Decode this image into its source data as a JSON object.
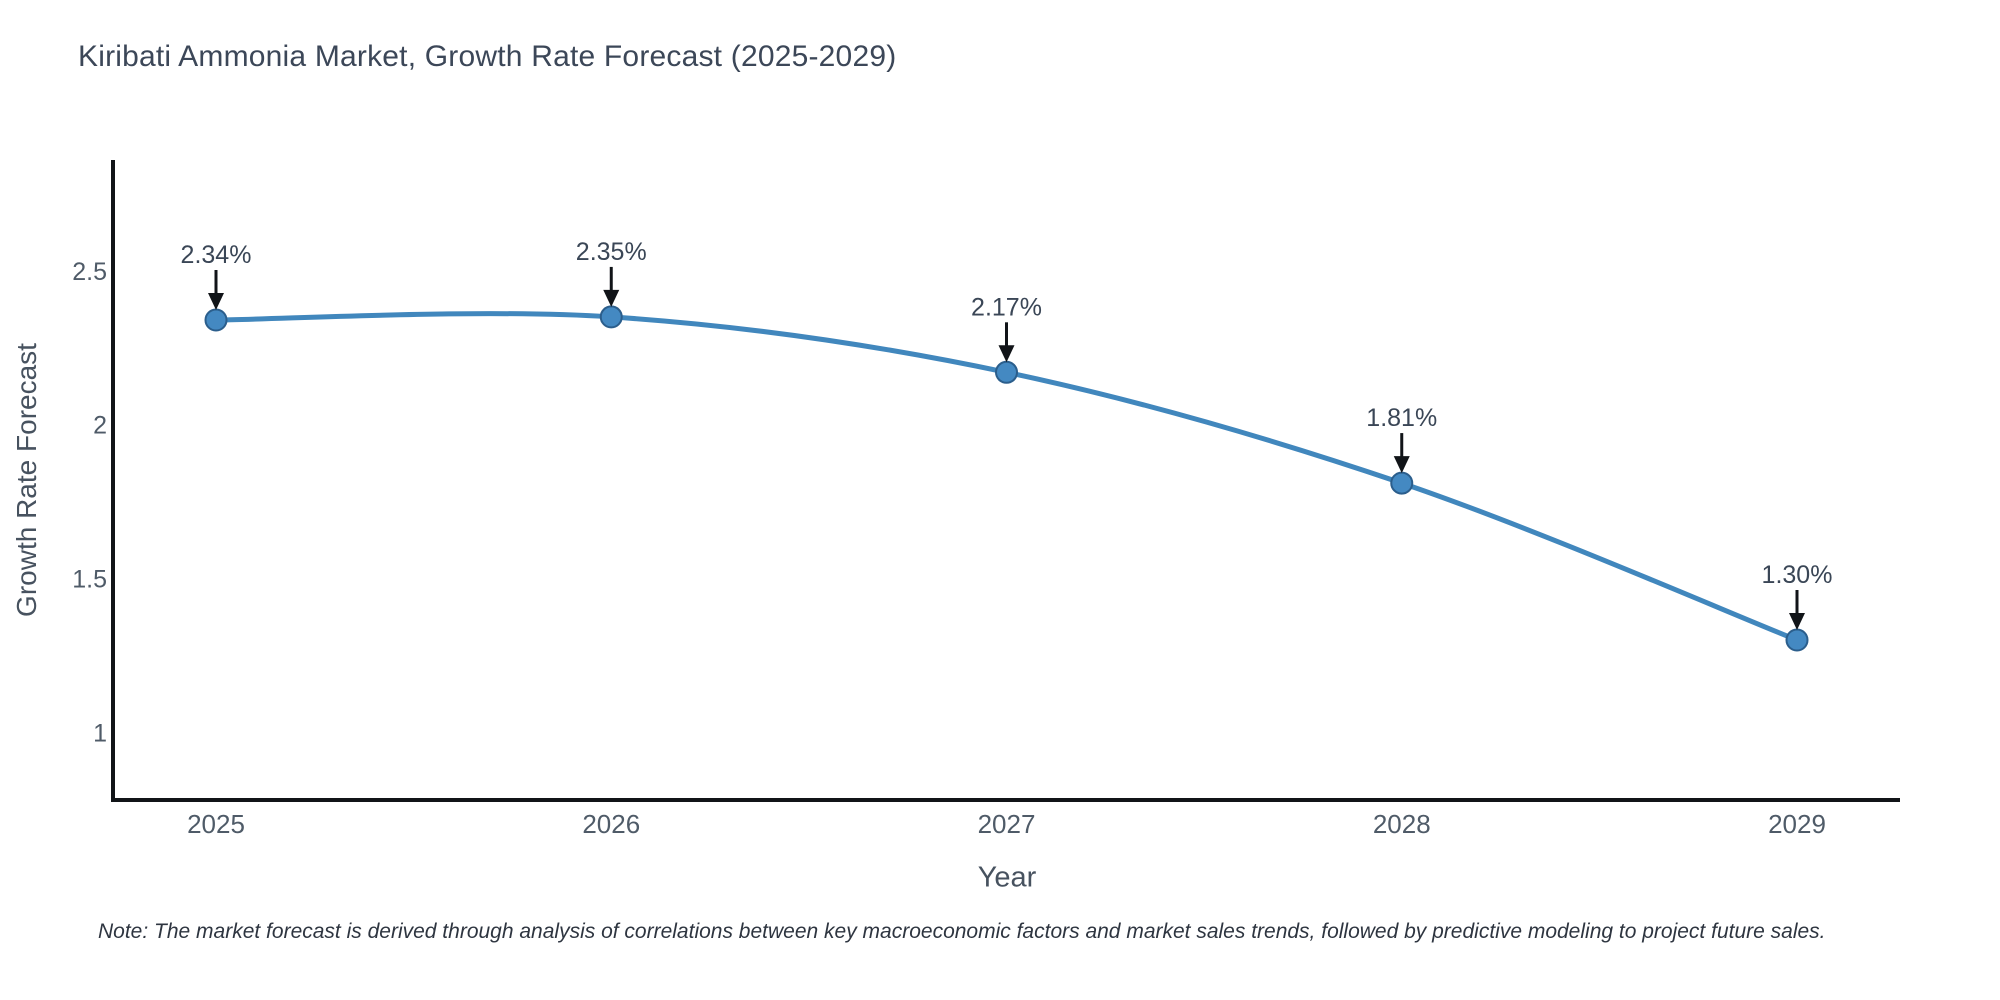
{
  "title": "Kiribati Ammonia Market, Growth Rate Forecast (2025-2029)",
  "note": "Note: The market forecast is derived through analysis of correlations between key macroeconomic factors and market sales trends, followed by predictive modeling to project future sales.",
  "chart_data": {
    "type": "line",
    "line_shape": "spline",
    "title": "Kiribati Ammonia Market, Growth Rate Forecast (2025-2029)",
    "categories": [
      "2025",
      "2026",
      "2027",
      "2028",
      "2029"
    ],
    "values": [
      2.34,
      2.35,
      2.17,
      1.81,
      1.3
    ],
    "point_labels": [
      "2.34%",
      "2.35%",
      "2.17%",
      "1.81%",
      "1.30%"
    ],
    "xlabel": "Year",
    "ylabel": "Growth Rate Forecast",
    "yticks": [
      "2.5",
      "2",
      "1.5",
      "1"
    ],
    "ytick_values": [
      2.5,
      2.0,
      1.5,
      1.0
    ],
    "ylim": [
      0.78,
      2.86
    ],
    "grid": false,
    "legend": "none",
    "markers": true,
    "annotation_arrows": true,
    "colors": {
      "line": "#4187bd",
      "marker_fill": "#4489c2",
      "marker_stroke": "#2b5e8c",
      "axis": "#111418",
      "tick_label": "#4f5b68",
      "point_label": "#3a4656",
      "arrow": "#111418",
      "title": "#3c4758",
      "axis_title": "#47525f",
      "note": "#2e3540",
      "background": "#ffffff"
    }
  }
}
